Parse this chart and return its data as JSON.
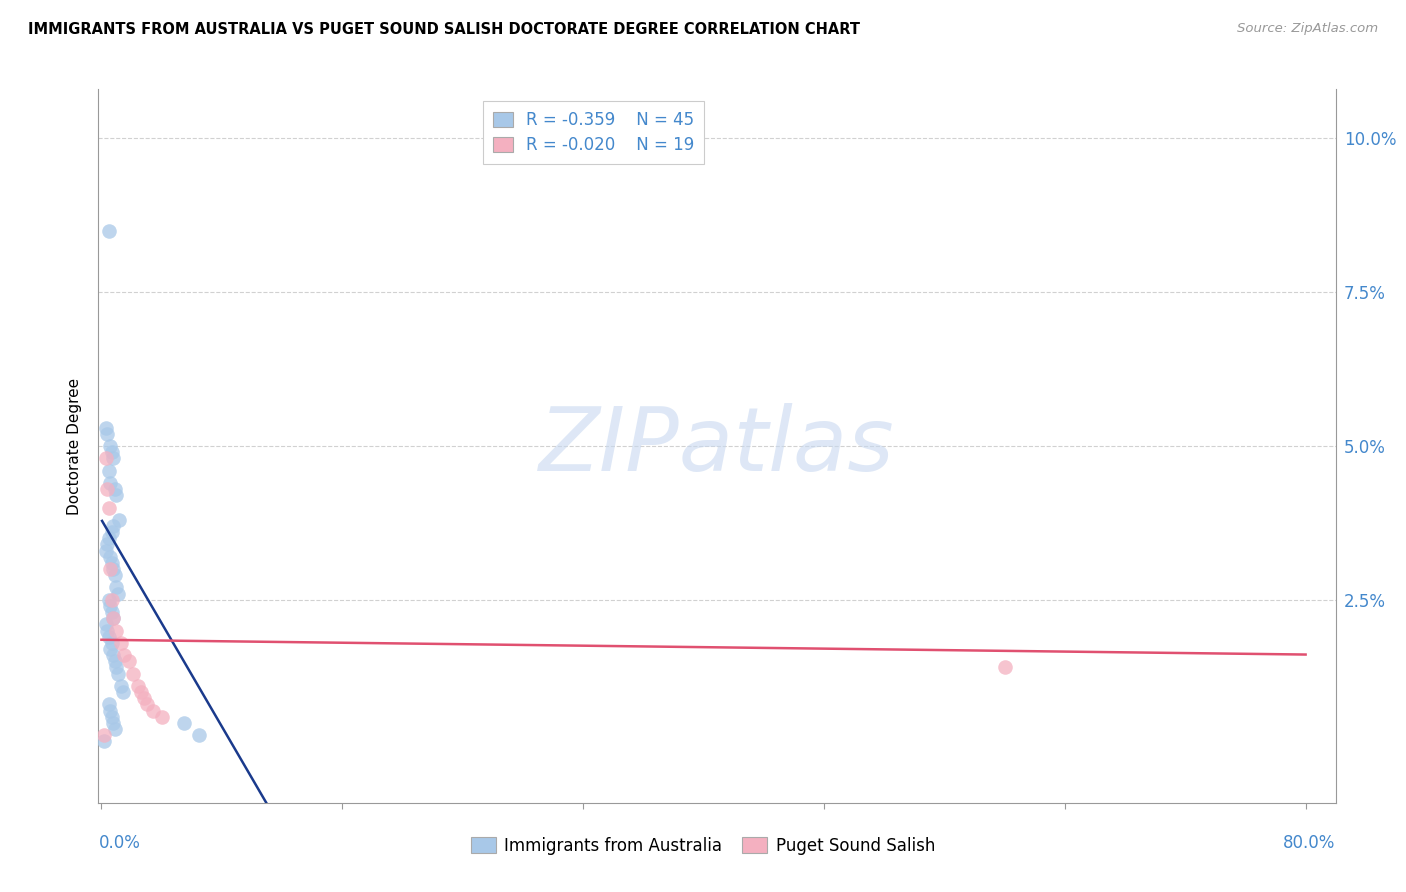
{
  "title": "IMMIGRANTS FROM AUSTRALIA VS PUGET SOUND SALISH DOCTORATE DEGREE CORRELATION CHART",
  "source": "Source: ZipAtlas.com",
  "ylabel": "Doctorate Degree",
  "blue_R": -0.359,
  "blue_N": 45,
  "pink_R": -0.02,
  "pink_N": 19,
  "blue_color": "#a8c8e8",
  "pink_color": "#f4b0c0",
  "blue_line_color": "#1a3a8c",
  "pink_line_color": "#e05070",
  "legend_label_blue": "Immigrants from Australia",
  "legend_label_pink": "Puget Sound Salish",
  "xlim": [
    -0.002,
    0.82
  ],
  "ylim": [
    -0.008,
    0.108
  ],
  "ytick_positions": [
    0.025,
    0.05,
    0.075,
    0.1
  ],
  "ytick_labels": [
    "2.5%",
    "5.0%",
    "7.5%",
    "10.0%"
  ],
  "xtick_positions": [
    0.0,
    0.16,
    0.32,
    0.48,
    0.64,
    0.8
  ],
  "axis_color": "#999999",
  "grid_color": "#cccccc",
  "tick_label_color": "#4488cc",
  "blue_scatter_x": [
    0.005,
    0.003,
    0.004,
    0.006,
    0.007,
    0.008,
    0.005,
    0.006,
    0.009,
    0.01,
    0.012,
    0.008,
    0.007,
    0.005,
    0.004,
    0.003,
    0.006,
    0.007,
    0.008,
    0.009,
    0.01,
    0.011,
    0.005,
    0.006,
    0.007,
    0.008,
    0.003,
    0.004,
    0.005,
    0.007,
    0.006,
    0.008,
    0.009,
    0.01,
    0.011,
    0.013,
    0.014,
    0.005,
    0.006,
    0.007,
    0.008,
    0.009,
    0.055,
    0.065,
    0.002
  ],
  "blue_scatter_y": [
    0.085,
    0.053,
    0.052,
    0.05,
    0.049,
    0.048,
    0.046,
    0.044,
    0.043,
    0.042,
    0.038,
    0.037,
    0.036,
    0.035,
    0.034,
    0.033,
    0.032,
    0.031,
    0.03,
    0.029,
    0.027,
    0.026,
    0.025,
    0.024,
    0.023,
    0.022,
    0.021,
    0.02,
    0.019,
    0.018,
    0.017,
    0.016,
    0.015,
    0.014,
    0.013,
    0.011,
    0.01,
    0.008,
    0.007,
    0.006,
    0.005,
    0.004,
    0.005,
    0.003,
    0.002
  ],
  "pink_scatter_x": [
    0.003,
    0.004,
    0.005,
    0.006,
    0.007,
    0.008,
    0.01,
    0.013,
    0.015,
    0.018,
    0.021,
    0.024,
    0.026,
    0.028,
    0.03,
    0.034,
    0.04,
    0.6,
    0.002
  ],
  "pink_scatter_y": [
    0.048,
    0.043,
    0.04,
    0.03,
    0.025,
    0.022,
    0.02,
    0.018,
    0.016,
    0.015,
    0.013,
    0.011,
    0.01,
    0.009,
    0.008,
    0.007,
    0.006,
    0.014,
    0.003
  ],
  "blue_line_x0": 0.0,
  "blue_line_y0": 0.038,
  "blue_line_slope": -0.42,
  "pink_line_x0": 0.0,
  "pink_line_y0": 0.0185,
  "pink_line_slope": -0.003,
  "watermark_text": "ZIPatlas",
  "watermark_color": "#c8d8f0",
  "watermark_fontsize": 64
}
